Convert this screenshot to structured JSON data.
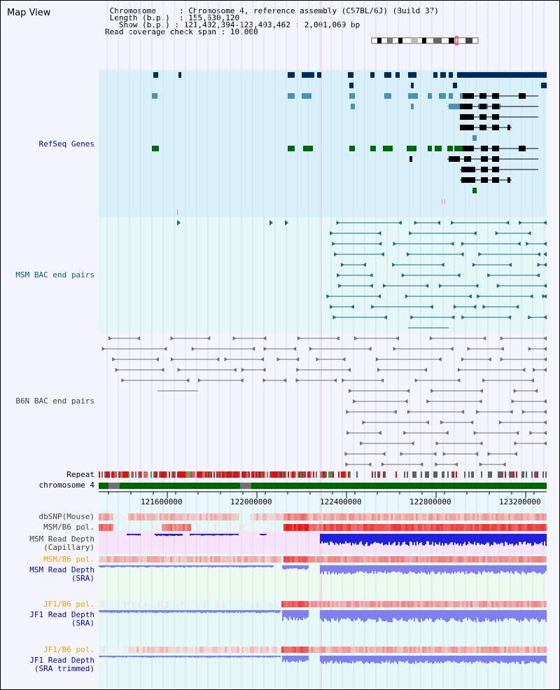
{
  "title": "Map View",
  "info": {
    "chromosome_label": "Chromosome",
    "chromosome_value": "Chromosome 4, reference assembly (C57BL/6J) (Build 37)",
    "length_label": "Length (b.p.)",
    "length_value": "155,630,120",
    "show_label": "Show (b.p.)",
    "show_value": "121,402,394-123,403,462 : 2,001,069 bp",
    "span_label": "Read coverage check span",
    "span_value": "10,000"
  },
  "tracks": {
    "refseq": "RefSeq Genes",
    "msm_bac": "MSM BAC end pairs",
    "b6n_bac": "B6N BAC end pairs",
    "repeat": "Repeat",
    "chromosome": "chromosome 4",
    "dbsnp": "dbSNP(Mouse)",
    "msm_b6_pol_1": "MSM/B6 pol.",
    "msm_depth_cap": "MSM Read Depth\n(Capillary)",
    "msm_b6_pol_2": "MSM/B6 pol.",
    "msm_depth_sra": "MSM Read Depth\n(SRA)",
    "jf1_b6_pol_1": "JF1/B6 pol.",
    "jf1_depth_sra": "JF1 Read Depth\n(SRA)",
    "jf1_b6_pol_2": "JF1/B6 pol.",
    "jf1_depth_trim": "JF1 Read Depth\n(SRA trimmed)"
  },
  "axis": {
    "ticks": [
      "121600000",
      "122000000",
      "122400000",
      "122800000",
      "123200000"
    ]
  },
  "colors": {
    "refseq_bg": "#d8f0fa",
    "msm_bg": "#e4f8f8",
    "b6n_bg": "#f4f4fc",
    "refseq_dark": "#002860",
    "refseq_mid": "#4a90b8",
    "refseq_green": "#006a0a",
    "msm_feature": "#186888",
    "b6n_feature": "#707070",
    "chromosome_bar": "#006400",
    "label_blue": "#0000c8",
    "label_orange": "#f0a000",
    "label_teal": "#006080",
    "label_gray": "#404040",
    "depth_blue": "#2020e0",
    "depth_light": "#8080f0",
    "pol_red": "#f01010"
  }
}
